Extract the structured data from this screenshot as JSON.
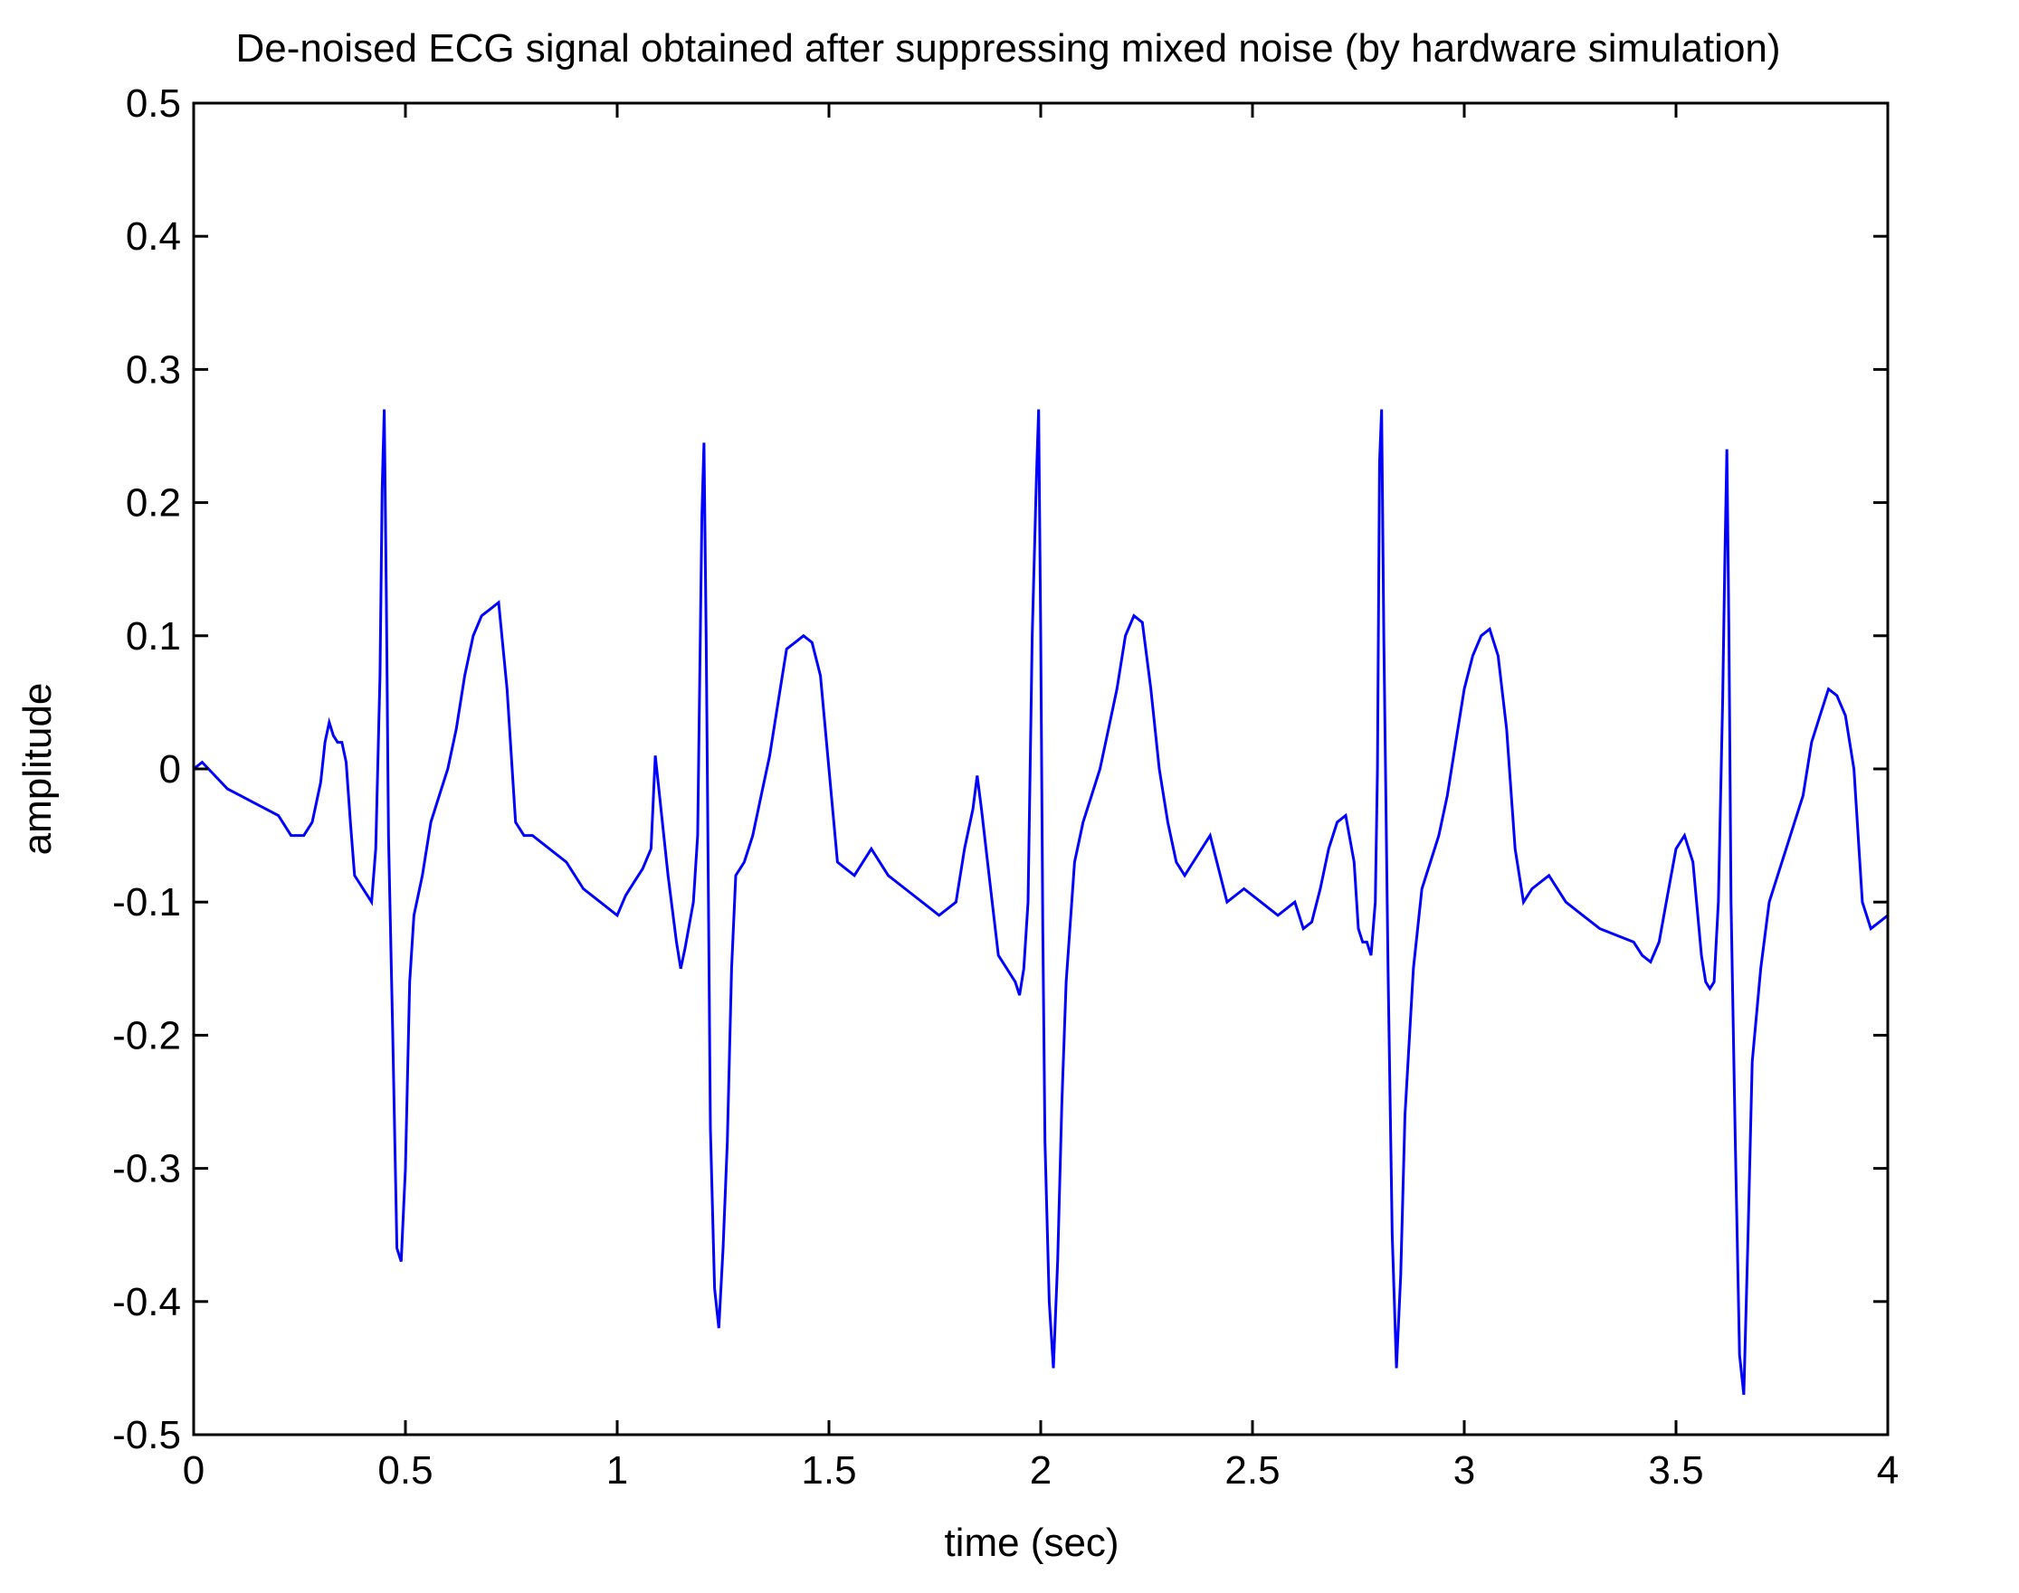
{
  "chart_data": {
    "type": "line",
    "title": "De-noised ECG signal obtained after suppressing mixed noise (by hardware simulation)",
    "xlabel": "time (sec)",
    "ylabel": "amplitude",
    "xlim": [
      0,
      4
    ],
    "ylim": [
      -0.5,
      0.5
    ],
    "xticks": [
      0,
      0.5,
      1,
      1.5,
      2,
      2.5,
      3,
      3.5,
      4
    ],
    "xtick_labels": [
      "0",
      "0.5",
      "1",
      "1.5",
      "2",
      "2.5",
      "3",
      "3.5",
      "4"
    ],
    "yticks": [
      0.5,
      0.4,
      0.3,
      0.2,
      0.1,
      0,
      -0.1,
      -0.2,
      -0.3,
      -0.4,
      -0.5
    ],
    "ytick_labels": [
      "0.5",
      "0.4",
      "0.3",
      "0.2",
      "0.1",
      "0",
      "-0.1",
      "-0.2",
      "-0.3",
      "-0.4",
      "-0.5"
    ],
    "grid": false,
    "legend": "none",
    "series": [
      {
        "color": "#0000ff",
        "x": [
          0,
          0.02,
          0.05,
          0.08,
          0.11,
          0.14,
          0.17,
          0.2,
          0.23,
          0.26,
          0.28,
          0.3,
          0.31,
          0.32,
          0.33,
          0.34,
          0.35,
          0.36,
          0.37,
          0.38,
          0.4,
          0.42,
          0.43,
          0.44,
          0.445,
          0.45,
          0.455,
          0.46,
          0.47,
          0.48,
          0.49,
          0.5,
          0.51,
          0.52,
          0.54,
          0.56,
          0.58,
          0.6,
          0.62,
          0.64,
          0.66,
          0.68,
          0.7,
          0.72,
          0.74,
          0.76,
          0.78,
          0.8,
          0.84,
          0.88,
          0.92,
          0.96,
          1.0,
          1.02,
          1.04,
          1.06,
          1.08,
          1.09,
          1.1,
          1.12,
          1.14,
          1.15,
          1.16,
          1.18,
          1.19,
          1.2,
          1.205,
          1.21,
          1.215,
          1.22,
          1.23,
          1.24,
          1.25,
          1.26,
          1.27,
          1.28,
          1.3,
          1.32,
          1.34,
          1.36,
          1.38,
          1.4,
          1.42,
          1.44,
          1.46,
          1.48,
          1.5,
          1.52,
          1.54,
          1.56,
          1.6,
          1.64,
          1.68,
          1.72,
          1.76,
          1.8,
          1.82,
          1.84,
          1.85,
          1.86,
          1.88,
          1.9,
          1.92,
          1.94,
          1.95,
          1.96,
          1.97,
          1.98,
          1.99,
          1.995,
          2.0,
          2.005,
          2.01,
          2.02,
          2.03,
          2.04,
          2.05,
          2.06,
          2.08,
          2.1,
          2.12,
          2.14,
          2.16,
          2.18,
          2.2,
          2.22,
          2.24,
          2.26,
          2.28,
          2.3,
          2.32,
          2.34,
          2.36,
          2.4,
          2.44,
          2.48,
          2.52,
          2.56,
          2.6,
          2.62,
          2.64,
          2.66,
          2.68,
          2.7,
          2.72,
          2.74,
          2.75,
          2.76,
          2.77,
          2.78,
          2.79,
          2.795,
          2.8,
          2.805,
          2.81,
          2.82,
          2.83,
          2.84,
          2.85,
          2.86,
          2.88,
          2.9,
          2.92,
          2.94,
          2.96,
          2.98,
          3.0,
          3.02,
          3.04,
          3.06,
          3.08,
          3.1,
          3.12,
          3.14,
          3.16,
          3.2,
          3.24,
          3.28,
          3.32,
          3.36,
          3.4,
          3.42,
          3.44,
          3.46,
          3.48,
          3.5,
          3.52,
          3.54,
          3.56,
          3.57,
          3.58,
          3.59,
          3.6,
          3.61,
          3.615,
          3.62,
          3.625,
          3.63,
          3.64,
          3.65,
          3.66,
          3.67,
          3.68,
          3.7,
          3.72,
          3.74,
          3.76,
          3.78,
          3.8,
          3.82,
          3.84,
          3.86,
          3.88,
          3.9,
          3.92,
          3.94,
          3.96,
          3.98,
          4.0
        ],
        "y": [
          0.0,
          0.005,
          -0.005,
          -0.015,
          -0.02,
          -0.025,
          -0.03,
          -0.035,
          -0.05,
          -0.05,
          -0.04,
          -0.01,
          0.02,
          0.035,
          0.025,
          0.02,
          0.02,
          0.005,
          -0.04,
          -0.08,
          -0.09,
          -0.1,
          -0.06,
          0.07,
          0.21,
          0.27,
          0.13,
          -0.05,
          -0.2,
          -0.36,
          -0.37,
          -0.3,
          -0.16,
          -0.11,
          -0.08,
          -0.04,
          -0.02,
          0.0,
          0.03,
          0.07,
          0.1,
          0.115,
          0.12,
          0.125,
          0.06,
          -0.04,
          -0.05,
          -0.05,
          -0.06,
          -0.07,
          -0.09,
          -0.1,
          -0.11,
          -0.095,
          -0.085,
          -0.075,
          -0.06,
          0.01,
          -0.02,
          -0.08,
          -0.13,
          -0.15,
          -0.135,
          -0.1,
          -0.05,
          0.19,
          0.245,
          0.1,
          -0.08,
          -0.27,
          -0.39,
          -0.42,
          -0.36,
          -0.28,
          -0.15,
          -0.08,
          -0.07,
          -0.05,
          -0.02,
          0.01,
          0.05,
          0.09,
          0.095,
          0.1,
          0.095,
          0.07,
          0.0,
          -0.07,
          -0.075,
          -0.08,
          -0.06,
          -0.08,
          -0.09,
          -0.1,
          -0.11,
          -0.1,
          -0.06,
          -0.03,
          -0.005,
          -0.03,
          -0.085,
          -0.14,
          -0.15,
          -0.16,
          -0.17,
          -0.15,
          -0.1,
          0.1,
          0.22,
          0.27,
          0.1,
          -0.12,
          -0.28,
          -0.4,
          -0.45,
          -0.37,
          -0.25,
          -0.16,
          -0.07,
          -0.04,
          -0.02,
          0.0,
          0.03,
          0.06,
          0.1,
          0.115,
          0.11,
          0.06,
          0.0,
          -0.04,
          -0.07,
          -0.08,
          -0.07,
          -0.05,
          -0.1,
          -0.09,
          -0.1,
          -0.11,
          -0.1,
          -0.12,
          -0.115,
          -0.09,
          -0.06,
          -0.04,
          -0.035,
          -0.07,
          -0.12,
          -0.13,
          -0.13,
          -0.14,
          -0.1,
          0.0,
          0.23,
          0.27,
          0.1,
          -0.15,
          -0.35,
          -0.45,
          -0.38,
          -0.26,
          -0.15,
          -0.09,
          -0.07,
          -0.05,
          -0.02,
          0.02,
          0.06,
          0.085,
          0.1,
          0.105,
          0.085,
          0.03,
          -0.06,
          -0.1,
          -0.09,
          -0.08,
          -0.1,
          -0.11,
          -0.12,
          -0.125,
          -0.13,
          -0.14,
          -0.145,
          -0.13,
          -0.095,
          -0.06,
          -0.05,
          -0.07,
          -0.14,
          -0.16,
          -0.165,
          -0.16,
          -0.1,
          0.05,
          0.15,
          0.24,
          0.1,
          -0.1,
          -0.28,
          -0.44,
          -0.47,
          -0.35,
          -0.22,
          -0.15,
          -0.1,
          -0.08,
          -0.06,
          -0.04,
          -0.02,
          0.02,
          0.04,
          0.06,
          0.055,
          0.04,
          0.0,
          -0.1,
          -0.12,
          -0.115,
          -0.11
        ]
      }
    ]
  }
}
